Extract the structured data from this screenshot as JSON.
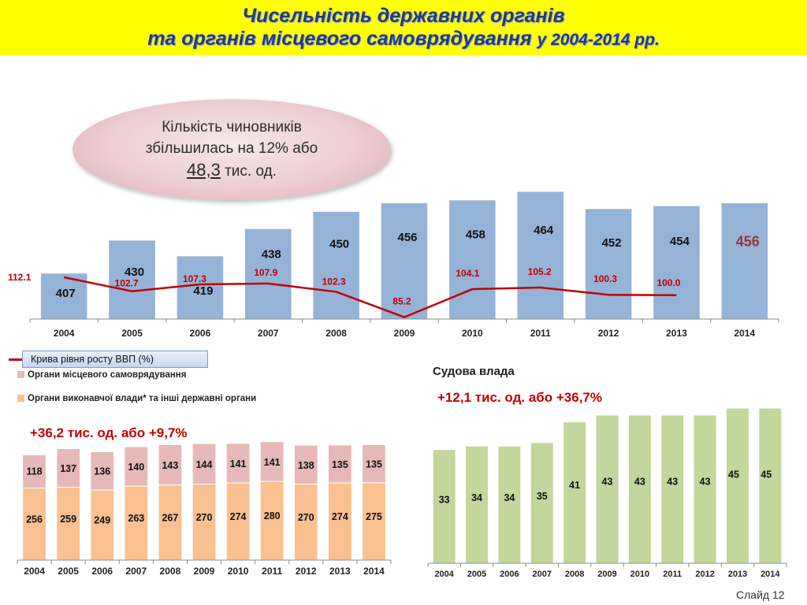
{
  "title": {
    "line1": "Чисельність державних органів",
    "line2_main": "та органів місцевого самоврядування",
    "line2_years": "у 2004-2014 рр."
  },
  "callout": {
    "line1": "Кількість чиновників",
    "line2": "збільшилась на 12% або",
    "value": "48,3",
    "unit": "тис. од."
  },
  "legend": {
    "gdp_curve": "Крива рівня росту ВВП (%)",
    "local": "Органи місцевого самоврядування",
    "executive": "Органи виконавчої влади* та інші державні органи"
  },
  "lower_left_note": "+36,2 тис. од. або +9,7%",
  "court": {
    "heading": "Судова влада",
    "note": "+12,1 тис. од. або +36,7%"
  },
  "slide_label": "Слайд 12",
  "colors": {
    "title_bg": "#ffff00",
    "title_text": "#1f3a8c",
    "bar_total": "#95b3d7",
    "gdp_line": "#c00000",
    "local": "#e6b9b8",
    "executive": "#fac090",
    "court": "#c3d69b"
  },
  "chart_data": [
    {
      "id": "total",
      "type": "bar",
      "title": "",
      "categories": [
        "2004",
        "2005",
        "2006",
        "2007",
        "2008",
        "2009",
        "2010",
        "2011",
        "2012",
        "2013",
        "2014"
      ],
      "values": [
        407,
        430,
        419,
        438,
        450,
        456,
        458,
        464,
        452,
        454,
        456
      ],
      "ylim": [
        375,
        470
      ],
      "highlight_last": true,
      "line_series": {
        "name": "Крива рівня росту ВВП (%)",
        "values": [
          112.1,
          102.7,
          107.3,
          107.9,
          102.3,
          85.2,
          104.1,
          105.2,
          100.3,
          100.0
        ],
        "labels": [
          "112.1",
          "102.7",
          "107.3",
          "107.9",
          "102.3",
          "85.2",
          "104.1",
          "105.2",
          "100.3",
          "100.0"
        ],
        "ylim": [
          85,
          112.1
        ]
      }
    },
    {
      "id": "state_bodies",
      "type": "bar",
      "stacked": true,
      "categories": [
        "2004",
        "2005",
        "2006",
        "2007",
        "2008",
        "2009",
        "2010",
        "2011",
        "2012",
        "2013",
        "2014"
      ],
      "series": [
        {
          "name": "Органи виконавчої влади* та інші державні органи",
          "values": [
            256,
            259,
            249,
            263,
            267,
            270,
            274,
            280,
            270,
            274,
            275
          ]
        },
        {
          "name": "Органи місцевого самоврядування",
          "values": [
            118,
            137,
            136,
            140,
            143,
            144,
            141,
            141,
            138,
            135,
            135
          ]
        }
      ],
      "ylim": [
        0,
        425
      ]
    },
    {
      "id": "court",
      "type": "bar",
      "title": "Судова влада",
      "categories": [
        "2004",
        "2005",
        "2006",
        "2007",
        "2008",
        "2009",
        "2010",
        "2011",
        "2012",
        "2013",
        "2014"
      ],
      "values": [
        33,
        34,
        34,
        35,
        41,
        43,
        43,
        43,
        43,
        45,
        45
      ],
      "ylim": [
        0,
        48
      ]
    }
  ]
}
